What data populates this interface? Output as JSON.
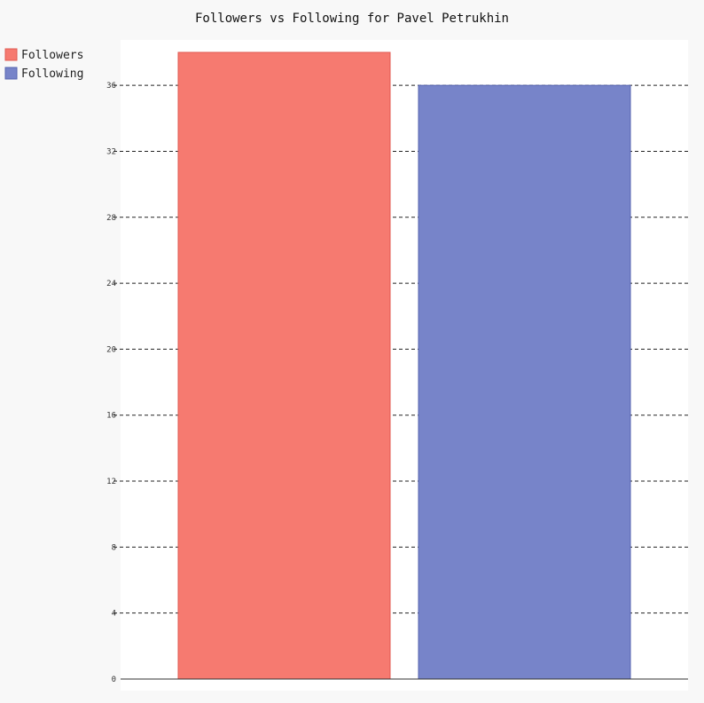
{
  "chart_data": {
    "type": "bar",
    "title": "Followers vs Following for Pavel Petrukhin",
    "xlabel": "",
    "ylabel": "",
    "series": [
      {
        "name": "Followers",
        "value": 38,
        "color": "#f67a70",
        "stroke": "#e05a52"
      },
      {
        "name": "Following",
        "value": 36,
        "color": "#7784c9",
        "stroke": "#5563b0"
      }
    ],
    "ylim": [
      0,
      38.8
    ],
    "yticks": [
      "0",
      "4",
      "8",
      "12",
      "16",
      "20",
      "24",
      "28",
      "32",
      "36"
    ],
    "grid": true,
    "legend_position": "top-left"
  }
}
